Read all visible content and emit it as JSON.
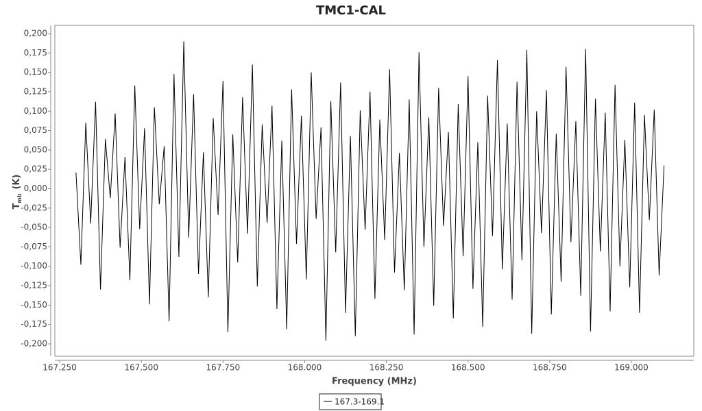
{
  "chart_data": {
    "type": "line",
    "title": "TMC1-CAL",
    "x_label": "Frequency (MHz)",
    "y_label": {
      "symbol": "T",
      "subscript": "mb",
      "unit": "(K)"
    },
    "xlim": [
      167.2353,
      169.191
    ],
    "ylim": [
      -0.2159,
      0.2106
    ],
    "xticks": [
      {
        "value": 167.25,
        "label": "167.250"
      },
      {
        "value": 167.5,
        "label": "167.500"
      },
      {
        "value": 167.75,
        "label": "167.750"
      },
      {
        "value": 168.0,
        "label": "168.000"
      },
      {
        "value": 168.25,
        "label": "168.250"
      },
      {
        "value": 168.5,
        "label": "168.500"
      },
      {
        "value": 168.75,
        "label": "168.750"
      },
      {
        "value": 169.0,
        "label": "169.000"
      }
    ],
    "yticks": [
      {
        "value": 0.2,
        "label": "0,200"
      },
      {
        "value": 0.175,
        "label": "0,175"
      },
      {
        "value": 0.15,
        "label": "0,150"
      },
      {
        "value": 0.125,
        "label": "0,125"
      },
      {
        "value": 0.1,
        "label": "0,100"
      },
      {
        "value": 0.075,
        "label": "0,075"
      },
      {
        "value": 0.05,
        "label": "0,050"
      },
      {
        "value": 0.025,
        "label": "0,025"
      },
      {
        "value": 0,
        "label": "0,000"
      },
      {
        "value": -0.025,
        "label": "-0,025"
      },
      {
        "value": -0.05,
        "label": "-0,050"
      },
      {
        "value": -0.075,
        "label": "-0,075"
      },
      {
        "value": -0.1,
        "label": "-0,100"
      },
      {
        "value": -0.125,
        "label": "-0,125"
      },
      {
        "value": -0.15,
        "label": "-0,150"
      },
      {
        "value": -0.175,
        "label": "-0,175"
      },
      {
        "value": -0.2,
        "label": "-0,200"
      }
    ],
    "x": [
      167.3,
      167.315,
      167.33,
      167.345,
      167.36,
      167.375,
      167.39,
      167.405,
      167.42,
      167.435,
      167.45,
      167.465,
      167.48,
      167.495,
      167.51,
      167.525,
      167.54,
      167.555,
      167.57,
      167.585,
      167.6,
      167.615,
      167.63,
      167.645,
      167.66,
      167.675,
      167.69,
      167.705,
      167.72,
      167.735,
      167.75,
      167.765,
      167.78,
      167.795,
      167.81,
      167.825,
      167.84,
      167.855,
      167.87,
      167.885,
      167.9,
      167.915,
      167.93,
      167.945,
      167.96,
      167.975,
      167.99,
      168.005,
      168.02,
      168.035,
      168.05,
      168.065,
      168.08,
      168.095,
      168.11,
      168.125,
      168.14,
      168.155,
      168.17,
      168.185,
      168.2,
      168.215,
      168.23,
      168.245,
      168.26,
      168.275,
      168.29,
      168.305,
      168.32,
      168.335,
      168.35,
      168.365,
      168.38,
      168.395,
      168.41,
      168.425,
      168.44,
      168.455,
      168.47,
      168.485,
      168.5,
      168.515,
      168.53,
      168.545,
      168.56,
      168.575,
      168.59,
      168.605,
      168.62,
      168.635,
      168.65,
      168.665,
      168.68,
      168.695,
      168.71,
      168.725,
      168.74,
      168.755,
      168.77,
      168.785,
      168.8,
      168.815,
      168.83,
      168.845,
      168.86,
      168.875,
      168.89,
      168.905,
      168.92,
      168.935,
      168.95,
      168.965,
      168.98,
      168.995,
      169.01,
      169.025,
      169.04,
      169.055,
      169.07,
      169.085,
      169.1
    ],
    "series": [
      {
        "name": "167.3-169.1",
        "color": "#000000",
        "values": [
          0.021,
          -0.098,
          0.085,
          -0.045,
          0.112,
          -0.13,
          0.064,
          -0.012,
          0.097,
          -0.076,
          0.041,
          -0.118,
          0.133,
          -0.052,
          0.078,
          -0.149,
          0.105,
          -0.02,
          0.055,
          -0.171,
          0.148,
          -0.088,
          0.19,
          -0.063,
          0.122,
          -0.11,
          0.047,
          -0.14,
          0.091,
          -0.034,
          0.139,
          -0.185,
          0.07,
          -0.095,
          0.118,
          -0.058,
          0.16,
          -0.126,
          0.083,
          -0.044,
          0.107,
          -0.155,
          0.062,
          -0.181,
          0.128,
          -0.071,
          0.094,
          -0.117,
          0.15,
          -0.039,
          0.079,
          -0.196,
          0.113,
          -0.082,
          0.137,
          -0.16,
          0.068,
          -0.19,
          0.101,
          -0.053,
          0.125,
          -0.142,
          0.089,
          -0.066,
          0.154,
          -0.108,
          0.046,
          -0.131,
          0.115,
          -0.188,
          0.176,
          -0.075,
          0.092,
          -0.151,
          0.13,
          -0.048,
          0.073,
          -0.167,
          0.109,
          -0.087,
          0.145,
          -0.129,
          0.06,
          -0.178,
          0.12,
          -0.061,
          0.166,
          -0.104,
          0.084,
          -0.143,
          0.138,
          -0.092,
          0.179,
          -0.187,
          0.1,
          -0.057,
          0.127,
          -0.162,
          0.071,
          -0.12,
          0.157,
          -0.069,
          0.087,
          -0.138,
          0.18,
          -0.184,
          0.116,
          -0.081,
          0.098,
          -0.158,
          0.134,
          -0.1,
          0.063,
          -0.127,
          0.111,
          -0.16,
          0.095,
          -0.04,
          0.102,
          -0.112,
          0.03
        ]
      }
    ]
  }
}
